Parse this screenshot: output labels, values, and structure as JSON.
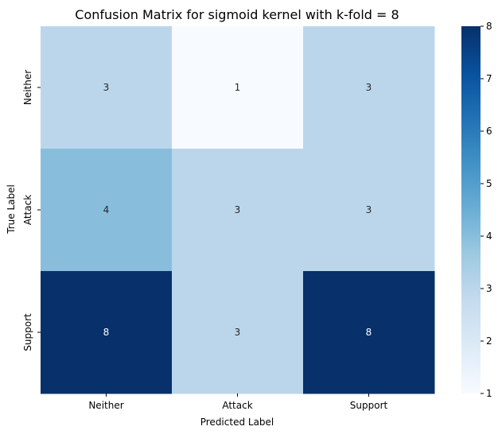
{
  "chart_data": {
    "type": "heatmap",
    "title": "Confusion Matrix for sigmoid kernel with k-fold = 8",
    "xlabel": "Predicted Label",
    "ylabel": "True Label",
    "x_categories": [
      "Neither",
      "Attack",
      "Support"
    ],
    "y_categories": [
      "Neither",
      "Attack",
      "Support"
    ],
    "values": [
      [
        3,
        1,
        3
      ],
      [
        4,
        3,
        3
      ],
      [
        8,
        3,
        8
      ]
    ],
    "colormap": "Blues",
    "colorbar": {
      "min": 1,
      "max": 8,
      "ticks": [
        "1",
        "2",
        "3",
        "4",
        "5",
        "6",
        "7",
        "8"
      ]
    },
    "annotations": true,
    "grid": false
  }
}
